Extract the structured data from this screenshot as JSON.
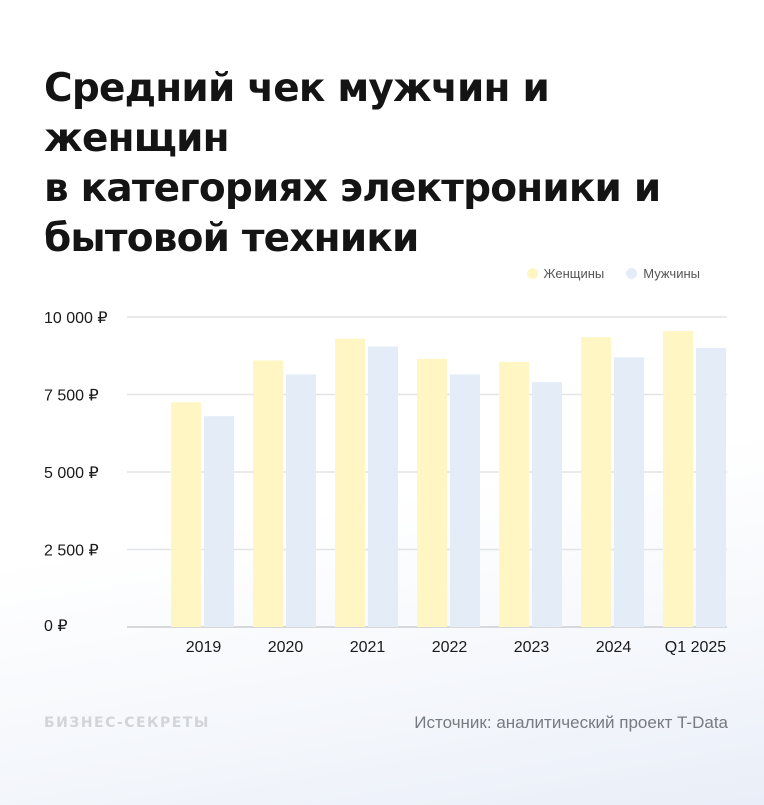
{
  "title_lines": [
    "Средний чек мужчин и женщин",
    "в категориях электроники и",
    "бытовой техники"
  ],
  "legend": [
    {
      "label": "Женщины",
      "color": "#fff6c4"
    },
    {
      "label": "Мужчины",
      "color": "#e4edf7"
    }
  ],
  "footer": {
    "logo": "БИЗНЕС-СЕКРЕТЫ",
    "source": "Источник: аналитический проект T-Data"
  },
  "colors": {
    "women": "#fff6c4",
    "men": "#e4edf7",
    "grid": "#e2e4e8",
    "text": "#1a1a1a"
  },
  "chart_data": {
    "type": "bar",
    "title": "Средний чек мужчин и женщин в категориях электроники и бытовой техники",
    "categories": [
      "2019",
      "2020",
      "2021",
      "2022",
      "2023",
      "2024",
      "Q1 2025"
    ],
    "series": [
      {
        "name": "Женщины",
        "values": [
          7250,
          8600,
          9300,
          8650,
          8550,
          9350,
          9550
        ]
      },
      {
        "name": "Мужчины",
        "values": [
          6800,
          8150,
          9050,
          8150,
          7900,
          8700,
          9000
        ]
      }
    ],
    "yticks": [
      0,
      2500,
      5000,
      7500,
      10000
    ],
    "ytick_labels": [
      "0 ₽",
      "2 500 ₽",
      "5 000 ₽",
      "7 500 ₽",
      "10 000 ₽"
    ],
    "ylim": [
      0,
      10000
    ],
    "xlabel": "",
    "ylabel": "",
    "grid": true,
    "legend_position": "top-right"
  }
}
